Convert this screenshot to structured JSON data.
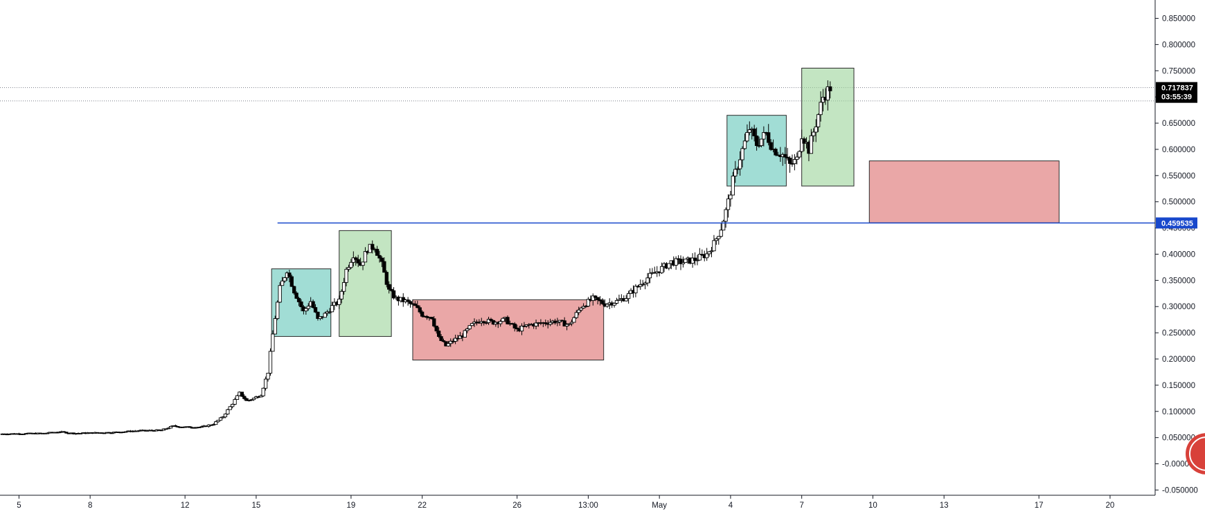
{
  "chart_data": {
    "type": "candlestick",
    "title": "",
    "y_axis": {
      "side": "right",
      "ticks": [
        "0.850000",
        "0.800000",
        "0.750000",
        "0.700000",
        "0.650000",
        "0.600000",
        "0.550000",
        "0.500000",
        "0.450000",
        "0.400000",
        "0.350000",
        "0.300000",
        "0.250000",
        "0.200000",
        "0.150000",
        "0.100000",
        "0.050000",
        "-0.000000",
        "-0.050000"
      ],
      "tick_values": [
        0.85,
        0.8,
        0.75,
        0.7,
        0.65,
        0.6,
        0.55,
        0.5,
        0.45,
        0.4,
        0.35,
        0.3,
        0.25,
        0.2,
        0.15,
        0.1,
        0.05,
        0.0,
        -0.05
      ],
      "range": [
        -0.06,
        0.885
      ]
    },
    "x_axis": {
      "ticks": [
        "5",
        "8",
        "12",
        "15",
        "19",
        "22",
        "26",
        "13:00",
        "May",
        "4",
        "7",
        "10",
        "13",
        "17",
        "20"
      ],
      "tick_days": [
        5,
        8,
        12,
        15,
        19,
        22,
        26,
        29,
        32,
        35,
        38,
        41,
        44,
        48,
        51
      ],
      "range": [
        4.2,
        52.9
      ]
    },
    "last_price": {
      "value": 0.717837,
      "label": "0.717837",
      "countdown": "03:55:39",
      "bg_color": "#000000"
    },
    "dotted_lines": [
      0.717837,
      0.6925
    ],
    "horizontal_line": {
      "value": 0.459535,
      "label": "0.459535",
      "start_day": 15.9,
      "color": "#1848cc"
    },
    "zones": [
      {
        "color": "#63c7b9",
        "day_start": 15.65,
        "day_end": 18.15,
        "price_top": 0.372,
        "price_bottom": 0.243
      },
      {
        "color": "#9bd39a",
        "day_start": 18.5,
        "day_end": 20.7,
        "price_top": 0.445,
        "price_bottom": 0.243
      },
      {
        "color": "#dc6c6c",
        "day_start": 21.6,
        "day_end": 29.65,
        "price_top": 0.313,
        "price_bottom": 0.198
      },
      {
        "color": "#63c7b9",
        "day_start": 34.85,
        "day_end": 37.35,
        "price_top": 0.665,
        "price_bottom": 0.53
      },
      {
        "color": "#9bd39a",
        "day_start": 38.0,
        "day_end": 40.2,
        "price_top": 0.755,
        "price_bottom": 0.53
      },
      {
        "color": "#dc6c6c",
        "day_start": 40.85,
        "day_end": 48.85,
        "price_top": 0.578,
        "price_bottom": 0.46
      }
    ],
    "close_path": [
      [
        4.2,
        0.057
      ],
      [
        6,
        0.058
      ],
      [
        6.7,
        0.061
      ],
      [
        7.3,
        0.058
      ],
      [
        9,
        0.06
      ],
      [
        10,
        0.063
      ],
      [
        11,
        0.064
      ],
      [
        11.5,
        0.072
      ],
      [
        12,
        0.07
      ],
      [
        12.7,
        0.07
      ],
      [
        13.2,
        0.076
      ],
      [
        13.6,
        0.09
      ],
      [
        14,
        0.115
      ],
      [
        14.3,
        0.135
      ],
      [
        14.6,
        0.12
      ],
      [
        14.9,
        0.125
      ],
      [
        15.2,
        0.132
      ],
      [
        15.5,
        0.175
      ],
      [
        15.75,
        0.265
      ],
      [
        16.0,
        0.335
      ],
      [
        16.3,
        0.37
      ],
      [
        16.6,
        0.33
      ],
      [
        17.0,
        0.29
      ],
      [
        17.3,
        0.31
      ],
      [
        17.6,
        0.275
      ],
      [
        17.9,
        0.285
      ],
      [
        18.2,
        0.3
      ],
      [
        18.5,
        0.31
      ],
      [
        18.8,
        0.37
      ],
      [
        19.1,
        0.4
      ],
      [
        19.4,
        0.38
      ],
      [
        19.7,
        0.41
      ],
      [
        20.0,
        0.415
      ],
      [
        20.3,
        0.38
      ],
      [
        20.6,
        0.33
      ],
      [
        20.9,
        0.315
      ],
      [
        21.3,
        0.31
      ],
      [
        21.7,
        0.3
      ],
      [
        22.0,
        0.285
      ],
      [
        22.4,
        0.28
      ],
      [
        22.7,
        0.24
      ],
      [
        23.0,
        0.225
      ],
      [
        23.3,
        0.235
      ],
      [
        23.7,
        0.245
      ],
      [
        24.1,
        0.265
      ],
      [
        24.5,
        0.275
      ],
      [
        25,
        0.27
      ],
      [
        25.5,
        0.275
      ],
      [
        26,
        0.255
      ],
      [
        26.5,
        0.265
      ],
      [
        27,
        0.268
      ],
      [
        27.6,
        0.272
      ],
      [
        28.2,
        0.265
      ],
      [
        28.7,
        0.3
      ],
      [
        29.2,
        0.315
      ],
      [
        29.7,
        0.305
      ],
      [
        30.2,
        0.31
      ],
      [
        30.6,
        0.318
      ],
      [
        31,
        0.335
      ],
      [
        31.5,
        0.355
      ],
      [
        32,
        0.37
      ],
      [
        32.5,
        0.385
      ],
      [
        33,
        0.385
      ],
      [
        33.5,
        0.39
      ],
      [
        34,
        0.4
      ],
      [
        34.3,
        0.42
      ],
      [
        34.6,
        0.45
      ],
      [
        34.85,
        0.49
      ],
      [
        35.1,
        0.54
      ],
      [
        35.4,
        0.585
      ],
      [
        35.8,
        0.64
      ],
      [
        36.1,
        0.61
      ],
      [
        36.5,
        0.63
      ],
      [
        36.8,
        0.6
      ],
      [
        37.2,
        0.59
      ],
      [
        37.5,
        0.57
      ],
      [
        37.8,
        0.58
      ],
      [
        38.0,
        0.63
      ],
      [
        38.3,
        0.6
      ],
      [
        38.6,
        0.65
      ],
      [
        38.9,
        0.7
      ],
      [
        39.2,
        0.718
      ]
    ]
  }
}
